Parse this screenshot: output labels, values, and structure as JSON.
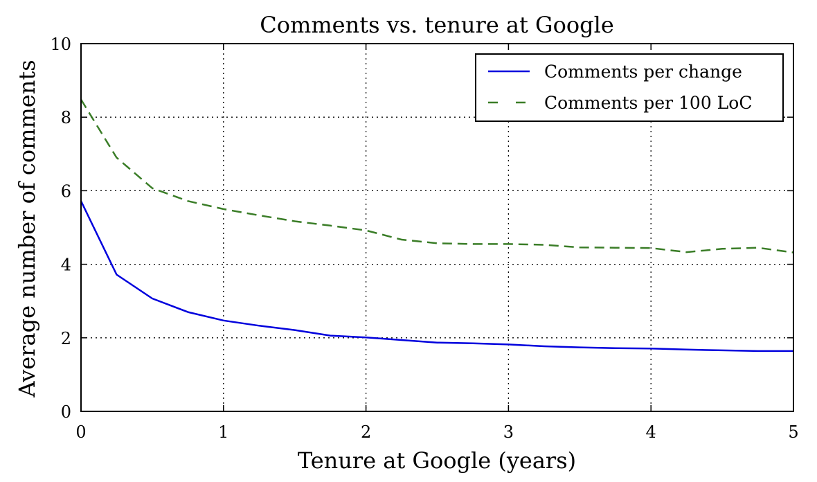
{
  "chart_data": {
    "type": "line",
    "title": "Comments vs. tenure at Google",
    "xlabel": "Tenure at Google (years)",
    "ylabel": "Average number of comments",
    "xlim": [
      0,
      5
    ],
    "ylim": [
      0,
      10
    ],
    "xticks": [
      "0",
      "1",
      "2",
      "3",
      "4",
      "5"
    ],
    "yticks": [
      "0",
      "2",
      "4",
      "6",
      "8",
      "10"
    ],
    "grid": true,
    "legend_position": "top-right",
    "series": [
      {
        "name": "Comments per change",
        "color": "#0000dd",
        "style": "solid",
        "x": [
          0,
          0.25,
          0.5,
          0.75,
          1.0,
          1.25,
          1.5,
          1.75,
          2.0,
          2.25,
          2.5,
          2.75,
          3.0,
          3.25,
          3.5,
          3.75,
          4.0,
          4.25,
          4.5,
          4.75,
          5.0
        ],
        "values": [
          5.72,
          3.72,
          3.07,
          2.7,
          2.47,
          2.33,
          2.21,
          2.06,
          2.01,
          1.94,
          1.87,
          1.85,
          1.82,
          1.77,
          1.74,
          1.72,
          1.71,
          1.68,
          1.66,
          1.64,
          1.64
        ]
      },
      {
        "name": "Comments per 100 LoC",
        "color": "#3a7d27",
        "style": "dashed",
        "x": [
          0,
          0.25,
          0.5,
          0.75,
          1.0,
          1.25,
          1.5,
          1.75,
          2.0,
          2.25,
          2.5,
          2.75,
          3.0,
          3.25,
          3.5,
          3.75,
          4.0,
          4.25,
          4.5,
          4.75,
          5.0
        ],
        "values": [
          8.48,
          6.9,
          6.07,
          5.72,
          5.5,
          5.33,
          5.17,
          5.05,
          4.92,
          4.67,
          4.57,
          4.55,
          4.55,
          4.53,
          4.46,
          4.45,
          4.44,
          4.33,
          4.42,
          4.45,
          4.32
        ]
      }
    ]
  }
}
